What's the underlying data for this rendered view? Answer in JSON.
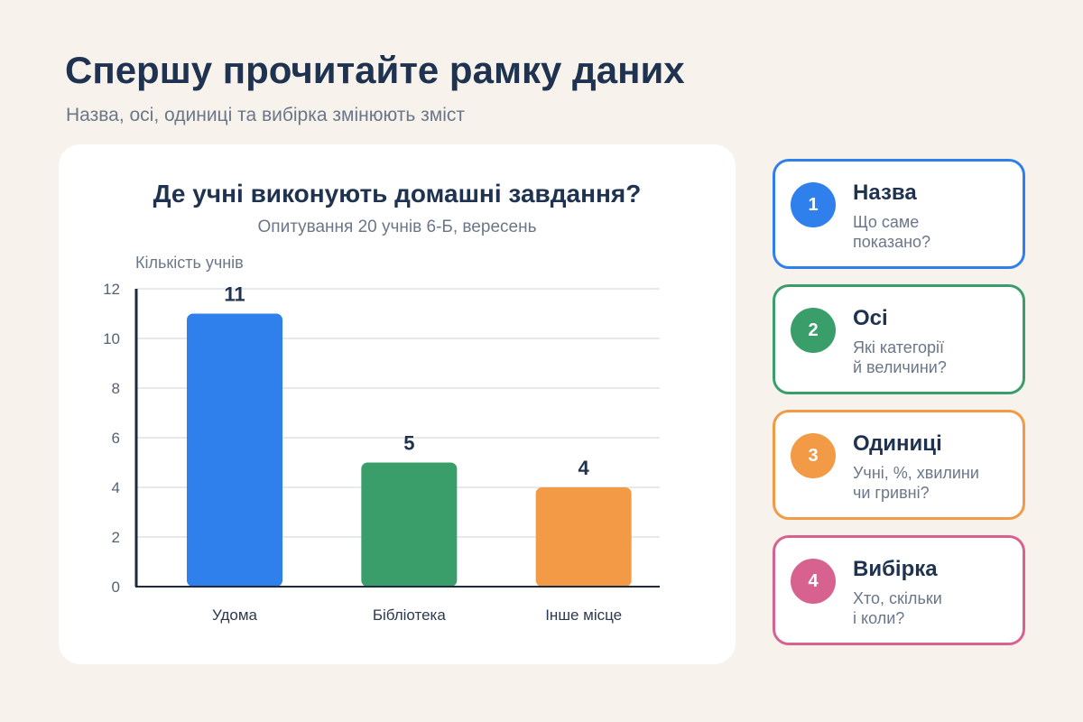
{
  "header": {
    "title": "Спершу прочитайте рамку даних",
    "subtitle": "Назва, осі, одиниці та вибірка змінюють зміст"
  },
  "chart_data": {
    "type": "bar",
    "title": "Де учні виконують домашні завдання?",
    "subtitle": "Опитування 20 учнів 6-Б, вересень",
    "ylabel": "Кількість учнів",
    "xlabel": "",
    "categories": [
      "Удома",
      "Бібліотека",
      "Інше місце"
    ],
    "values": [
      11,
      5,
      4
    ],
    "colors": [
      "#2f80ed",
      "#3a9e6a",
      "#f29a45"
    ],
    "ylim": [
      0,
      12
    ],
    "yticks": [
      0,
      2,
      4,
      6,
      8,
      10,
      12
    ],
    "grid": true,
    "data_labels": true
  },
  "steps": [
    {
      "num": "1",
      "title": "Назва",
      "desc": "Що саме\nпоказано?",
      "color": "#2f80ed"
    },
    {
      "num": "2",
      "title": "Осі",
      "desc": "Які категорії\nй величини?",
      "color": "#3a9e6a"
    },
    {
      "num": "3",
      "title": "Одиниці",
      "desc": "Учні, %, хвилини\nчи гривні?",
      "color": "#f29a45"
    },
    {
      "num": "4",
      "title": "Вибірка",
      "desc": "Хто, скільки\nі коли?",
      "color": "#d8628f"
    }
  ]
}
